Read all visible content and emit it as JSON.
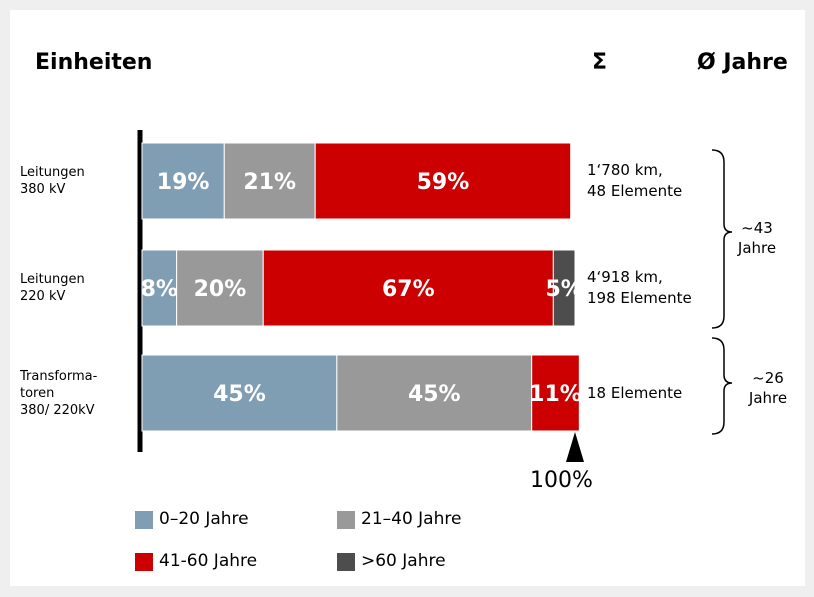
{
  "chart_data": {
    "type": "stacked_bar_horizontal",
    "column_headers": [
      "Einheiten",
      "Σ",
      "Ø Jahre"
    ],
    "categories": [
      "Leitungen\n380 kV",
      "Leitungen\n220 kV",
      "Transforma-\ntoren\n380/ 220kV"
    ],
    "series": [
      {
        "name": "0–20 Jahre",
        "color": "#7f9db3",
        "values": [
          19,
          8,
          45
        ],
        "value_labels": [
          "19%",
          "8%",
          "45%"
        ]
      },
      {
        "name": "21–40 Jahre",
        "color": "#999999",
        "values": [
          21,
          20,
          45
        ],
        "value_labels": [
          "21%",
          "20%",
          "45%"
        ]
      },
      {
        "name": "41-60 Jahre",
        "color": "#cc0000",
        "values": [
          59,
          67,
          11
        ],
        "value_labels": [
          "59%",
          "67%",
          "11%"
        ]
      },
      {
        "name": ">60 Jahre",
        "color": "#4d4d4d",
        "values": [
          null,
          5,
          null
        ],
        "value_labels": [
          null,
          "5%",
          null
        ]
      }
    ],
    "row_totals": [
      "1‘780 km,\n48 Elemente",
      "4‘918 km,\n198 Elemente",
      "18 Elemente"
    ],
    "average_age": [
      "~43\nJahre",
      "~26\nJahre"
    ],
    "xlim": [
      0,
      100
    ],
    "end_marker_label": "100%"
  }
}
